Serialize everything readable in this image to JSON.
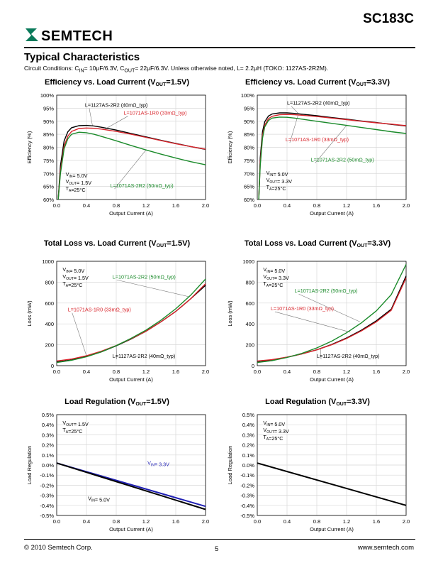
{
  "header": {
    "part_number": "SC183C",
    "logo_text": "SEMTECH",
    "section_title": "Typical Characteristics",
    "conditions": "Circuit Conditions: C_IN= 10μF/6.3V, C_OUT= 22μF/6.3V. Unless otherwise noted, L= 2.2μH (TOKO: 1127AS-2R2M)."
  },
  "footer": {
    "copyright": "© 2010 Semtech Corp.",
    "page": "5",
    "website": "www.semtech.com"
  },
  "colors": {
    "black": "#000000",
    "red": "#d8232a",
    "green": "#1a8a2a",
    "blue": "#1f1fb4"
  },
  "chart_data": [
    {
      "id": "eff15",
      "type": "line",
      "title": "Efficiency vs. Load Current (V_OUT=1.5V)",
      "xlabel": "Output Current (A)",
      "ylabel": "Efficiency (%)",
      "xlim": [
        0,
        2.0
      ],
      "ylim": [
        60,
        100
      ],
      "xticks": [
        "0.0",
        "0.4",
        "0.8",
        "1.2",
        "1.6",
        "2.0"
      ],
      "yticks": [
        "60%",
        "65%",
        "70%",
        "75%",
        "80%",
        "85%",
        "90%",
        "95%",
        "100%"
      ],
      "conditions": [
        "V_IN= 5.0V",
        "V_OUT= 1.5V",
        "T_A=25°C"
      ],
      "series": [
        {
          "name": "L=1127AS-2R2 (40mΩ_typ)",
          "color": "black",
          "x": [
            0.02,
            0.05,
            0.1,
            0.15,
            0.2,
            0.3,
            0.4,
            0.5,
            0.6,
            0.8,
            1.0,
            1.2,
            1.4,
            1.6,
            1.8,
            2.0
          ],
          "y": [
            60,
            73,
            82.5,
            86,
            87.5,
            88.3,
            88.4,
            88.2,
            87.7,
            86.6,
            85.3,
            84.0,
            82.7,
            81.5,
            80.3,
            79.2
          ]
        },
        {
          "name": "L=1071AS-1R0 (33mΩ_typ)",
          "color": "red",
          "x": [
            0.02,
            0.05,
            0.1,
            0.15,
            0.2,
            0.3,
            0.4,
            0.5,
            0.6,
            0.8,
            1.0,
            1.2,
            1.4,
            1.6,
            1.8,
            2.0
          ],
          "y": [
            60,
            71,
            80.5,
            84.3,
            86.1,
            87.2,
            87.4,
            87.3,
            87.0,
            86.1,
            85.0,
            83.8,
            82.6,
            81.4,
            80.3,
            79.3
          ]
        },
        {
          "name": "L=1071AS-2R2 (50mΩ_typ)",
          "color": "green",
          "x": [
            0.02,
            0.05,
            0.1,
            0.15,
            0.2,
            0.3,
            0.4,
            0.5,
            0.6,
            0.8,
            1.0,
            1.2,
            1.4,
            1.6,
            1.8,
            2.0
          ],
          "y": [
            60,
            70,
            79.5,
            83.3,
            85.0,
            85.8,
            85.6,
            85.0,
            84.2,
            82.5,
            80.7,
            79.0,
            77.4,
            75.9,
            74.5,
            73.3
          ]
        }
      ],
      "annotations": [
        {
          "text": "L=1127AS-2R2 (40mΩ_typ)",
          "x": 0.38,
          "y": 95.5,
          "color": "black",
          "lx": 0.48,
          "ly": 88.4
        },
        {
          "text": "L=1071AS-1R0 (33mΩ_typ)",
          "x": 0.9,
          "y": 92.5,
          "color": "red",
          "lx": 0.65,
          "ly": 87.0
        },
        {
          "text": "L=1071AS-2R2 (50mΩ_typ)",
          "x": 0.72,
          "y": 64.6,
          "color": "green",
          "lx": 1.2,
          "ly": 79.0
        }
      ]
    },
    {
      "id": "eff33",
      "type": "line",
      "title": "Efficiency vs. Load Current (V_OUT=3.3V)",
      "xlabel": "Output Current (A)",
      "ylabel": "Efficiency (%)",
      "xlim": [
        0,
        2.0
      ],
      "ylim": [
        60,
        100
      ],
      "xticks": [
        "0.0",
        "0.4",
        "0.8",
        "1.2",
        "1.6",
        "2.0"
      ],
      "yticks": [
        "60%",
        "65%",
        "70%",
        "75%",
        "80%",
        "85%",
        "90%",
        "95%",
        "100%"
      ],
      "conditions": [
        "V_IN= 5.0V",
        "V_OUT= 3.3V",
        "T_A=25°C"
      ],
      "series": [
        {
          "name": "L=1127AS-2R2 (40mΩ_typ)",
          "color": "black",
          "x": [
            0.02,
            0.04,
            0.07,
            0.1,
            0.15,
            0.2,
            0.3,
            0.4,
            0.5,
            0.6,
            0.8,
            1.0,
            1.2,
            1.4,
            1.6,
            1.8,
            2.0
          ],
          "y": [
            60,
            76,
            86,
            89.8,
            92,
            92.8,
            93.2,
            93.2,
            93.0,
            92.7,
            92.1,
            91.4,
            90.8,
            90.1,
            89.5,
            88.8,
            88.2
          ]
        },
        {
          "name": "L=1071AS-1R0 (33mΩ_typ)",
          "color": "red",
          "x": [
            0.02,
            0.04,
            0.07,
            0.1,
            0.15,
            0.2,
            0.3,
            0.4,
            0.5,
            0.6,
            0.8,
            1.0,
            1.2,
            1.4,
            1.6,
            1.8,
            2.0
          ],
          "y": [
            60,
            74,
            84.5,
            88.5,
            91,
            91.9,
            92.5,
            92.6,
            92.5,
            92.3,
            91.8,
            91.2,
            90.6,
            90.0,
            89.4,
            88.9,
            88.3
          ]
        },
        {
          "name": "L=1071AS-2R2 (50mΩ_typ)",
          "color": "green",
          "x": [
            0.02,
            0.04,
            0.07,
            0.1,
            0.15,
            0.2,
            0.3,
            0.4,
            0.5,
            0.6,
            0.8,
            1.0,
            1.2,
            1.4,
            1.6,
            1.8,
            2.0
          ],
          "y": [
            60,
            73,
            83.5,
            87.8,
            90.3,
            91.2,
            91.6,
            91.5,
            91.2,
            90.8,
            90.0,
            89.2,
            88.4,
            87.6,
            86.8,
            86.0,
            85.3
          ]
        }
      ],
      "annotations": [
        {
          "text": "L=1127AS-2R2 (40mΩ_typ)",
          "x": 0.4,
          "y": 96.3,
          "color": "black",
          "lx": 0.55,
          "ly": 93.0
        },
        {
          "text": "L=1071AS-1R0 (33mΩ_typ)",
          "x": 0.38,
          "y": 82.3,
          "color": "red",
          "lx": 0.55,
          "ly": 92.5
        },
        {
          "text": "L=1071AS-2R2 (50mΩ_typ)",
          "x": 0.72,
          "y": 74.5,
          "color": "green",
          "lx": 1.2,
          "ly": 88.4
        }
      ]
    },
    {
      "id": "loss15",
      "type": "line",
      "title": "Total Loss vs. Load Current (V_OUT=1.5V)",
      "xlabel": "Output Current (A)",
      "ylabel": "Loss (mW)",
      "xlim": [
        0,
        2.0
      ],
      "ylim": [
        0,
        1000
      ],
      "xticks": [
        "0.0",
        "0.4",
        "0.8",
        "1.2",
        "1.6",
        "2.0"
      ],
      "yticks": [
        "0",
        "200",
        "400",
        "600",
        "800",
        "1000"
      ],
      "conditions": [
        "V_IN= 5.0V",
        "V_OUT= 1.5V",
        "T_A=25°C"
      ],
      "series": [
        {
          "name": "L=1127AS-2R2 (40mΩ_typ)",
          "color": "black",
          "x": [
            0,
            0.2,
            0.4,
            0.6,
            0.8,
            1.0,
            1.2,
            1.4,
            1.6,
            1.8,
            2.0
          ],
          "y": [
            35,
            55,
            88,
            132,
            190,
            255,
            330,
            420,
            520,
            640,
            770
          ]
        },
        {
          "name": "L=1071AS-1R0 (33mΩ_typ)",
          "color": "red",
          "x": [
            0,
            0.2,
            0.4,
            0.6,
            0.8,
            1.0,
            1.2,
            1.4,
            1.6,
            1.8,
            2.0
          ],
          "y": [
            45,
            63,
            95,
            138,
            193,
            258,
            330,
            420,
            520,
            640,
            785
          ]
        },
        {
          "name": "L=1071AS-2R2 (50mΩ_typ)",
          "color": "green",
          "x": [
            0,
            0.2,
            0.4,
            0.6,
            0.8,
            1.0,
            1.2,
            1.4,
            1.6,
            1.8,
            2.0
          ],
          "y": [
            30,
            52,
            85,
            132,
            192,
            262,
            340,
            435,
            545,
            675,
            830
          ]
        }
      ],
      "annotations": [
        {
          "text": "L=1071AS-2R2 (50mΩ_typ)",
          "x": 0.75,
          "y": 835,
          "color": "green",
          "lx": 1.78,
          "ly": 660
        },
        {
          "text": "L=1071AS-1R0 (33mΩ_typ)",
          "x": 0.15,
          "y": 520,
          "color": "red",
          "lx": 0.4,
          "ly": 95
        },
        {
          "text": "L=1127AS-2R2 (40mΩ_typ)",
          "x": 0.75,
          "y": 75,
          "color": "black",
          "lx": 0.8,
          "ly": 190
        }
      ]
    },
    {
      "id": "loss33",
      "type": "line",
      "title": "Total Loss vs. Load Current (V_OUT=3.3V)",
      "xlabel": "Output Current (A)",
      "ylabel": "Loss (mW)",
      "xlim": [
        0,
        2.0
      ],
      "ylim": [
        0,
        1000
      ],
      "xticks": [
        "0.0",
        "0.4",
        "0.8",
        "1.2",
        "1.6",
        "2.0"
      ],
      "yticks": [
        "0",
        "200",
        "400",
        "600",
        "800",
        "1000"
      ],
      "conditions": [
        "V_IN= 5.0V",
        "V_OUT= 3.3V",
        "T_A=25°C"
      ],
      "series": [
        {
          "name": "L=1127AS-2R2 (40mΩ_typ)",
          "color": "black",
          "x": [
            0,
            0.2,
            0.4,
            0.6,
            0.8,
            1.0,
            1.2,
            1.4,
            1.6,
            1.8,
            2.0
          ],
          "y": [
            40,
            55,
            80,
            112,
            152,
            203,
            265,
            340,
            430,
            540,
            860
          ]
        },
        {
          "name": "L=1071AS-1R0 (33mΩ_typ)",
          "color": "red",
          "x": [
            0,
            0.2,
            0.4,
            0.6,
            0.8,
            1.0,
            1.2,
            1.4,
            1.6,
            1.8,
            2.0
          ],
          "y": [
            45,
            58,
            82,
            113,
            152,
            200,
            260,
            333,
            420,
            530,
            840
          ]
        },
        {
          "name": "L=1071AS-2R2 (50mΩ_typ)",
          "color": "green",
          "x": [
            0,
            0.2,
            0.4,
            0.6,
            0.8,
            1.0,
            1.2,
            1.4,
            1.6,
            1.8,
            2.0
          ],
          "y": [
            30,
            48,
            78,
            118,
            170,
            235,
            315,
            410,
            525,
            680,
            970
          ]
        }
      ],
      "annotations": [
        {
          "text": "L=1071AS-2R2 (50mΩ_typ)",
          "x": 0.5,
          "y": 700,
          "color": "green",
          "lx": 1.38,
          "ly": 420
        },
        {
          "text": "L=1071AS-1R0 (33mΩ_typ)",
          "x": 0.18,
          "y": 530,
          "color": "red",
          "lx": 1.25,
          "ly": 320
        },
        {
          "text": "L=1127AS-2R2 (40mΩ_typ)",
          "x": 0.8,
          "y": 75,
          "color": "black",
          "lx": 0.85,
          "ly": 160
        }
      ]
    },
    {
      "id": "reg15",
      "type": "line",
      "title": "Load Regulation (V_OUT=1.5V)",
      "xlabel": "Output Current (A)",
      "ylabel": "Load Regulation",
      "xlim": [
        0,
        2.0
      ],
      "ylim": [
        -0.5,
        0.5
      ],
      "xticks": [
        "0.0",
        "0.4",
        "0.8",
        "1.2",
        "1.6",
        "2.0"
      ],
      "yticks": [
        "-0.5%",
        "-0.4%",
        "-0.3%",
        "-0.2%",
        "-0.1%",
        "0.0%",
        "0.1%",
        "0.2%",
        "0.3%",
        "0.4%",
        "0.5%"
      ],
      "conditions": [
        "V_OUT= 1.5V",
        "T_A=25°C"
      ],
      "series": [
        {
          "name": "V_IN= 3.3V",
          "color": "blue",
          "x": [
            0,
            2.0
          ],
          "y": [
            0.02,
            -0.41
          ]
        },
        {
          "name": "V_IN= 5.0V",
          "color": "black",
          "x": [
            0,
            2.0
          ],
          "y": [
            0.02,
            -0.44
          ]
        }
      ],
      "annotations": [
        {
          "text": "V_IN= 3.3V",
          "x": 1.22,
          "y": 0.005,
          "color": "blue",
          "lx": null,
          "ly": null
        },
        {
          "text": "V_IN= 5.0V",
          "x": 0.42,
          "y": -0.35,
          "color": "black",
          "lx": null,
          "ly": null
        }
      ]
    },
    {
      "id": "reg33",
      "type": "line",
      "title": "Load Regulation (V_OUT=3.3V)",
      "xlabel": "Output Current (A)",
      "ylabel": "Load Regulation",
      "xlim": [
        0,
        2.0
      ],
      "ylim": [
        -0.5,
        0.5
      ],
      "xticks": [
        "0.0",
        "0.4",
        "0.8",
        "1.2",
        "1.6",
        "2.0"
      ],
      "yticks": [
        "-0.5%",
        "-0.4%",
        "-0.3%",
        "-0.2%",
        "-0.1%",
        "0.0%",
        "0.1%",
        "0.2%",
        "0.3%",
        "0.4%",
        "0.5%"
      ],
      "conditions": [
        "V_IN= 5.0V",
        "V_OUT= 3.3V",
        "T_A=25°C"
      ],
      "series": [
        {
          "name": "",
          "color": "black",
          "x": [
            0,
            2.0
          ],
          "y": [
            0.02,
            -0.4
          ]
        }
      ],
      "annotations": []
    }
  ]
}
